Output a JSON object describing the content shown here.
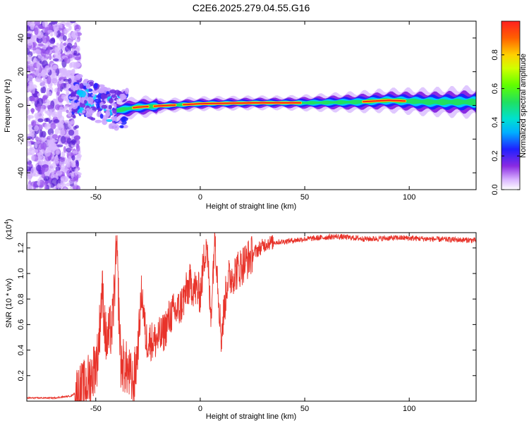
{
  "title": "C2E6.2025.279.04.55.G16",
  "chart_data": [
    {
      "type": "heatmap",
      "name": "spectrogram",
      "xlabel": "Height of straight line (km)",
      "ylabel": "Frequency (Hz)",
      "xlim": [
        -83,
        132
      ],
      "ylim": [
        -50,
        50
      ],
      "x_ticks": [
        -50,
        0,
        50,
        100
      ],
      "y_ticks": [
        -40,
        -20,
        0,
        20,
        40
      ],
      "colorbar": {
        "label": "Normalized spectral amplitude",
        "range": [
          0,
          1
        ],
        "ticks": [
          "0.0",
          "0.2",
          "0.4",
          "0.6",
          "0.8"
        ]
      },
      "ridge": [
        {
          "x": -60,
          "f": 8
        },
        {
          "x": -50,
          "f": 2
        },
        {
          "x": -40,
          "f": -3
        },
        {
          "x": -30,
          "f": -1
        },
        {
          "x": -15,
          "f": 0
        },
        {
          "x": 0,
          "f": 1
        },
        {
          "x": 25,
          "f": 1.5
        },
        {
          "x": 50,
          "f": 1.5
        },
        {
          "x": 75,
          "f": 2
        },
        {
          "x": 90,
          "f": 3
        },
        {
          "x": 110,
          "f": 2
        },
        {
          "x": 132,
          "f": 2
        }
      ],
      "noise_region_end_km": -60
    },
    {
      "type": "line",
      "name": "snr",
      "xlabel": "Height of straight line (km)",
      "ylabel": "SNR (10 * v/v)",
      "y_multiplier": "(x10",
      "y_multiplier_exp": "4",
      "y_multiplier_close": ")",
      "xlim": [
        -83,
        132
      ],
      "ylim": [
        0,
        13200
      ],
      "x_ticks": [
        -50,
        0,
        50,
        100
      ],
      "y_ticks": [
        {
          "value": 2000,
          "label": "0.2"
        },
        {
          "value": 4000,
          "label": "0.4"
        },
        {
          "value": 6000,
          "label": "0.6"
        },
        {
          "value": 8000,
          "label": "0.8"
        },
        {
          "value": 10000,
          "label": "1.0"
        },
        {
          "value": 12000,
          "label": "1.2"
        }
      ],
      "color": "#e8332a",
      "series": [
        {
          "x": -83,
          "y": 250
        },
        {
          "x": -70,
          "y": 250
        },
        {
          "x": -62,
          "y": 400
        },
        {
          "x": -56,
          "y": 1000
        },
        {
          "x": -52,
          "y": 2000
        },
        {
          "x": -49,
          "y": 3500
        },
        {
          "x": -47,
          "y": 8800
        },
        {
          "x": -45,
          "y": 4500
        },
        {
          "x": -42,
          "y": 6000
        },
        {
          "x": -40,
          "y": 12000
        },
        {
          "x": -38,
          "y": 3000
        },
        {
          "x": -35,
          "y": 2500
        },
        {
          "x": -32,
          "y": 1200
        },
        {
          "x": -30,
          "y": 3800
        },
        {
          "x": -28,
          "y": 8700
        },
        {
          "x": -26,
          "y": 4800
        },
        {
          "x": -22,
          "y": 4700
        },
        {
          "x": -18,
          "y": 5200
        },
        {
          "x": -14,
          "y": 6800
        },
        {
          "x": -10,
          "y": 7200
        },
        {
          "x": -5,
          "y": 9200
        },
        {
          "x": 0,
          "y": 8400
        },
        {
          "x": 3,
          "y": 12800
        },
        {
          "x": 5,
          "y": 6500
        },
        {
          "x": 7,
          "y": 13200
        },
        {
          "x": 10,
          "y": 5000
        },
        {
          "x": 13,
          "y": 9500
        },
        {
          "x": 18,
          "y": 10300
        },
        {
          "x": 22,
          "y": 11000
        },
        {
          "x": 27,
          "y": 11800
        },
        {
          "x": 32,
          "y": 12400
        },
        {
          "x": 40,
          "y": 12500
        },
        {
          "x": 50,
          "y": 12700
        },
        {
          "x": 65,
          "y": 12900
        },
        {
          "x": 80,
          "y": 12700
        },
        {
          "x": 95,
          "y": 12800
        },
        {
          "x": 110,
          "y": 12700
        },
        {
          "x": 132,
          "y": 12600
        }
      ]
    }
  ]
}
